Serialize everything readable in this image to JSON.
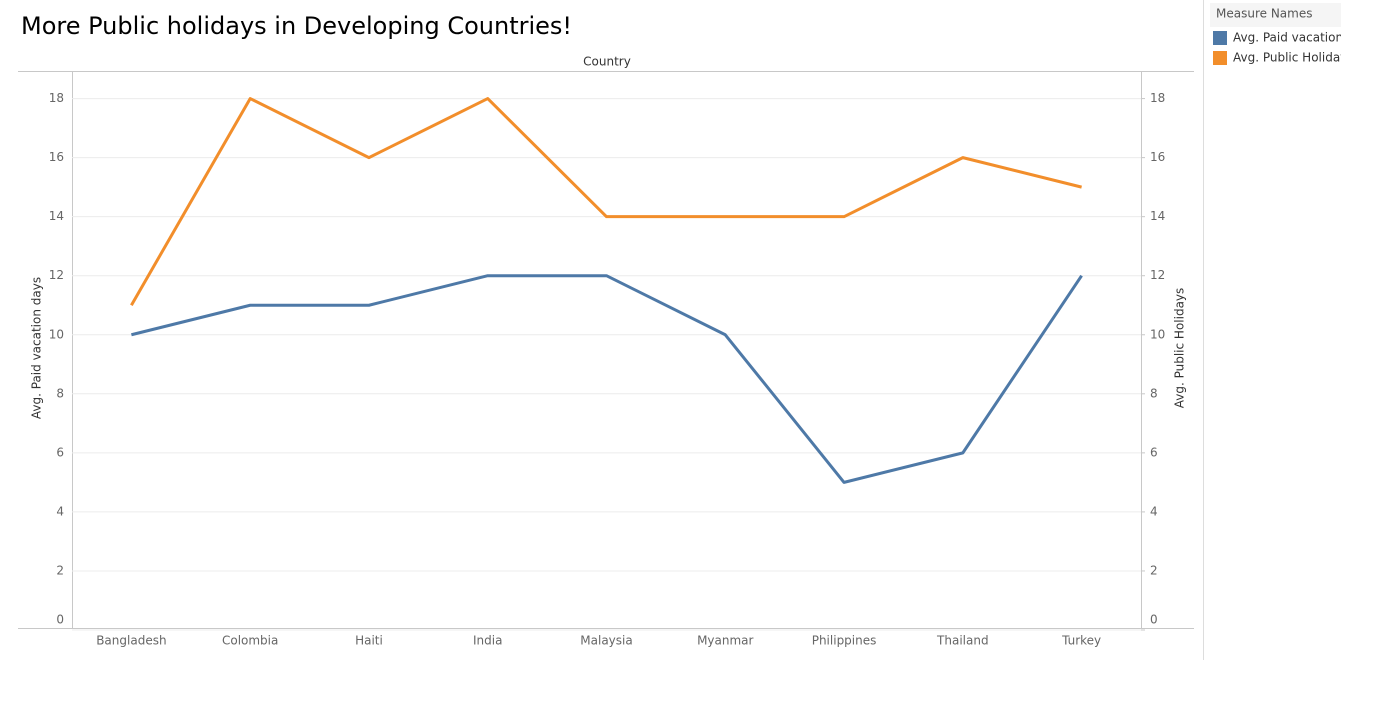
{
  "chart_data": {
    "type": "line",
    "title": "More Public holidays in Developing Countries!",
    "x_header": "Country",
    "y_label": "Avg. Paid vacation days",
    "y2_label": "Avg. Public Holidays",
    "legend_title": "Measure Names",
    "legend": "right",
    "grid": true,
    "categories": [
      "Bangladesh",
      "Colombia",
      "Haiti",
      "India",
      "Malaysia",
      "Myanmar",
      "Philippines",
      "Thailand",
      "Turkey"
    ],
    "series": [
      {
        "name": "Avg. Paid vacation days",
        "color": "#4e79a7",
        "values": [
          10,
          11,
          11,
          12,
          12,
          10,
          5,
          6,
          12
        ]
      },
      {
        "name": "Avg. Public Holidays",
        "color": "#f28e2b",
        "axis": "y2",
        "values": [
          11,
          18,
          16,
          18,
          14,
          14,
          14,
          16,
          15
        ]
      }
    ],
    "ylim": [
      0,
      18.9
    ],
    "yticks": [
      0,
      2,
      4,
      6,
      8,
      10,
      12,
      14,
      16,
      18
    ],
    "y2lim": [
      0,
      18.9
    ],
    "y2ticks": [
      0,
      2,
      4,
      6,
      8,
      10,
      12,
      14,
      16,
      18
    ]
  }
}
